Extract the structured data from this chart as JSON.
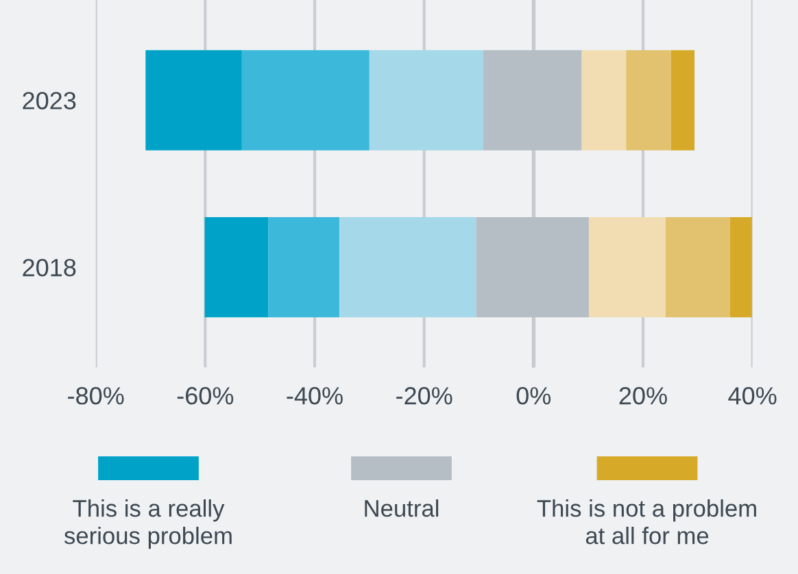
{
  "chart_data": {
    "type": "bar",
    "orientation": "horizontal",
    "categories": [
      "2023",
      "2018"
    ],
    "series": [
      {
        "name": "This is a really serious problem",
        "color": "#00a3c7",
        "base": [
          -70.9,
          -60.1
        ],
        "values": [
          17.6,
          11.6
        ]
      },
      {
        "color": "#3bb8da",
        "base": [
          -53.3,
          -48.5
        ],
        "values": [
          23.3,
          13.0
        ]
      },
      {
        "color": "#a5d8e8",
        "base": [
          -30.0,
          -35.5
        ],
        "values": [
          20.8,
          25.0
        ]
      },
      {
        "name": "Neutral",
        "color": "#b6bec5",
        "base": [
          -9.2,
          -10.5
        ],
        "values": [
          18.0,
          20.6
        ]
      },
      {
        "color": "#f1ddb1",
        "base": [
          8.8,
          10.1
        ],
        "values": [
          8.1,
          14.0
        ]
      },
      {
        "color": "#e2c26f",
        "base": [
          16.9,
          24.1
        ],
        "values": [
          8.2,
          11.8
        ]
      },
      {
        "name": "This is not a problem at all for me",
        "color": "#d6a928",
        "base": [
          25.1,
          35.9
        ],
        "values": [
          4.3,
          4.0
        ]
      }
    ],
    "xlim": [
      -80,
      40
    ],
    "xticks": [
      {
        "value": -80,
        "label": "-80%"
      },
      {
        "value": -60,
        "label": "-60%"
      },
      {
        "value": -40,
        "label": "-40%"
      },
      {
        "value": -20,
        "label": "-20%"
      },
      {
        "value": 0,
        "label": "0%"
      },
      {
        "value": 20,
        "label": "20%"
      },
      {
        "value": 40,
        "label": "40%"
      }
    ],
    "ref_lines": [
      {
        "axis": "x",
        "value": 0,
        "color": "#6d747a"
      }
    ],
    "grid": "x",
    "legend": "bottom"
  }
}
